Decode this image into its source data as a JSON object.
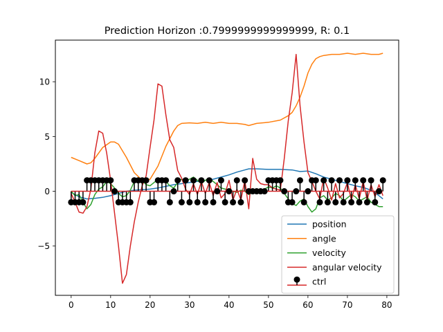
{
  "chart_data": {
    "type": "line",
    "title": "Prediction Horizon :0.7999999999999999, R: 0.1",
    "xlabel": "",
    "ylabel": "",
    "xlim": [
      -4,
      83
    ],
    "ylim": [
      -9.5,
      13.8
    ],
    "xticks": [
      0,
      10,
      20,
      30,
      40,
      50,
      60,
      70,
      80
    ],
    "yticks": [
      -5,
      0,
      5,
      10
    ],
    "ytick_labels": [
      "−5",
      "0",
      "5",
      "10"
    ],
    "grid": false,
    "legend_position": "lower right",
    "series": [
      {
        "name": "position",
        "color": "#1f77b4",
        "x": [
          0,
          2,
          4,
          6,
          8,
          10,
          12,
          14,
          16,
          18,
          20,
          22,
          24,
          26,
          28,
          30,
          32,
          34,
          36,
          38,
          40,
          42,
          44,
          45,
          47,
          50,
          53,
          56,
          58,
          60,
          62,
          64,
          66,
          68,
          70,
          72,
          74,
          76,
          78,
          79
        ],
        "y": [
          -0.1,
          -0.5,
          -0.7,
          -0.65,
          -0.55,
          -0.4,
          -0.2,
          0.0,
          0.1,
          0.15,
          0.2,
          0.3,
          0.45,
          0.6,
          0.7,
          0.8,
          0.9,
          1.0,
          1.1,
          1.3,
          1.5,
          1.75,
          1.95,
          2.05,
          2.05,
          2.0,
          2.0,
          1.95,
          1.8,
          1.85,
          1.6,
          1.3,
          1.1,
          0.9,
          0.7,
          0.5,
          0.35,
          0.1,
          -0.4,
          -0.7
        ]
      },
      {
        "name": "angle",
        "color": "#ff7f0e",
        "x": [
          0,
          2,
          4,
          5,
          6,
          8,
          10,
          11,
          12,
          14,
          16,
          18,
          20,
          22,
          24,
          26,
          27,
          28,
          30,
          32,
          34,
          36,
          38,
          40,
          42,
          44,
          45,
          47,
          50,
          53,
          55,
          56,
          57,
          58,
          59,
          60,
          61,
          62,
          63,
          64,
          66,
          68,
          70,
          72,
          74,
          76,
          78,
          79
        ],
        "y": [
          3.1,
          2.8,
          2.5,
          2.6,
          3.0,
          4.0,
          4.5,
          4.5,
          4.3,
          3.1,
          1.7,
          1.0,
          1.1,
          2.3,
          4.1,
          5.5,
          6.0,
          6.2,
          6.25,
          6.2,
          6.3,
          6.2,
          6.3,
          6.2,
          6.2,
          6.1,
          6.0,
          6.2,
          6.3,
          6.5,
          6.9,
          7.2,
          7.8,
          8.6,
          9.6,
          10.8,
          11.6,
          12.1,
          12.3,
          12.4,
          12.5,
          12.5,
          12.6,
          12.5,
          12.6,
          12.5,
          12.5,
          12.6
        ]
      },
      {
        "name": "velocity",
        "color": "#2ca02c",
        "x": [
          0,
          1,
          2,
          3,
          4,
          5,
          6,
          7,
          8,
          9,
          10,
          11,
          12,
          13,
          14,
          15,
          16,
          17,
          18,
          19,
          20,
          21,
          22,
          23,
          24,
          25,
          26,
          27,
          28,
          29,
          30,
          31,
          32,
          33,
          34,
          35,
          36,
          37,
          38,
          39,
          40,
          41,
          42,
          43,
          44,
          45,
          46,
          47,
          48,
          49,
          50,
          51,
          52,
          53,
          54,
          55,
          56,
          57,
          58,
          59,
          60,
          61,
          62,
          63,
          64,
          65,
          66,
          67,
          68,
          69,
          70,
          71,
          72,
          73,
          74,
          75,
          76,
          77,
          78,
          79
        ],
        "y": [
          0,
          -0.4,
          -0.3,
          -1.0,
          -1.6,
          -1.2,
          -0.3,
          0.2,
          0.4,
          0.9,
          0.7,
          0.3,
          -0.2,
          -0.5,
          -0.4,
          0.1,
          0.9,
          1.2,
          1.0,
          0.6,
          0.5,
          0.8,
          1.1,
          1.2,
          0.9,
          0.5,
          0.3,
          0.8,
          1.1,
          0.9,
          1.1,
          1.3,
          1.0,
          0.7,
          1.0,
          1.2,
          0.9,
          0.6,
          0.3,
          0.2,
          0.1,
          0.0,
          -0.1,
          0.1,
          0.0,
          -0.3,
          -0.1,
          0.0,
          0.1,
          0.2,
          0.4,
          0.3,
          0.5,
          0.3,
          -0.2,
          -0.7,
          -1.1,
          -1.3,
          -0.9,
          -0.7,
          -1.4,
          -1.9,
          -1.6,
          -0.6,
          -0.4,
          -0.8,
          -0.6,
          -0.2,
          -0.4,
          -0.9,
          -0.6,
          -0.3,
          -0.5,
          -0.9,
          -0.7,
          -0.5,
          -1.0,
          -1.2,
          -1.4,
          -1.4
        ]
      },
      {
        "name": "angular velocity",
        "color": "#d62728",
        "x": [
          0,
          1,
          2,
          3,
          4,
          5,
          6,
          7,
          8,
          9,
          10,
          11,
          12,
          13,
          14,
          15,
          16,
          17,
          18,
          19,
          20,
          21,
          22,
          23,
          24,
          25,
          26,
          27,
          28,
          29,
          30,
          31,
          32,
          33,
          34,
          35,
          36,
          37,
          38,
          39,
          40,
          41,
          42,
          43,
          44,
          45,
          46,
          47,
          48,
          49,
          50,
          51,
          52,
          53,
          54,
          55,
          56,
          57,
          58,
          59,
          60,
          61,
          62,
          63,
          64,
          65,
          66,
          67,
          68,
          69,
          70,
          71,
          72,
          73,
          74,
          75,
          76,
          77,
          78,
          79
        ],
        "y": [
          -0.2,
          -1.0,
          -1.9,
          -2.0,
          -1.4,
          0.2,
          3.5,
          5.5,
          5.3,
          3.5,
          1.0,
          -2.0,
          -5.0,
          -8.4,
          -7.6,
          -5.0,
          -2.8,
          -1.0,
          0.5,
          1.4,
          4.0,
          6.5,
          9.8,
          9.6,
          7.0,
          4.7,
          4.0,
          1.9,
          1.2,
          0.2,
          -0.3,
          0.7,
          -0.3,
          0.9,
          -0.2,
          0.8,
          -0.4,
          0.8,
          -0.6,
          -0.2,
          1.0,
          -0.8,
          0.2,
          -0.8,
          1.0,
          -1.6,
          3.0,
          1.1,
          0.7,
          0.6,
          0.6,
          0.3,
          0.2,
          0.1,
          3.0,
          6.4,
          9.0,
          12.5,
          7.8,
          4.5,
          1.7,
          0.9,
          0.0,
          -0.7,
          1.2,
          0.3,
          -0.8,
          0.7,
          -0.6,
          -0.2,
          0.8,
          -0.8,
          0.6,
          -0.7,
          0.9,
          -0.8,
          0.6,
          -0.5,
          0.6,
          -0.4
        ]
      }
    ],
    "stem": {
      "name": "ctrl",
      "marker_color": "#000000",
      "stem_color": "#000000",
      "baseline_color": "#d62728",
      "baseline": 0,
      "values": [
        -1,
        -1,
        -1,
        -1,
        1,
        1,
        1,
        1,
        1,
        1,
        1,
        0,
        -1,
        -1,
        -1,
        -1,
        1,
        1,
        1,
        1,
        -1,
        -1,
        1,
        1,
        1,
        -1,
        0,
        1,
        -1,
        1,
        -1,
        1,
        -1,
        1,
        -1,
        1,
        -1,
        0,
        1,
        -1,
        0,
        -1,
        1,
        -1,
        1,
        0,
        0,
        0,
        0,
        0,
        1,
        1,
        1,
        1,
        0,
        -1,
        -1,
        0,
        1,
        -1,
        0,
        1,
        1,
        -1,
        1,
        -1,
        1,
        -1,
        1,
        -1,
        1,
        -1,
        1,
        -1,
        1,
        -1,
        1,
        -1,
        0,
        1
      ]
    }
  }
}
